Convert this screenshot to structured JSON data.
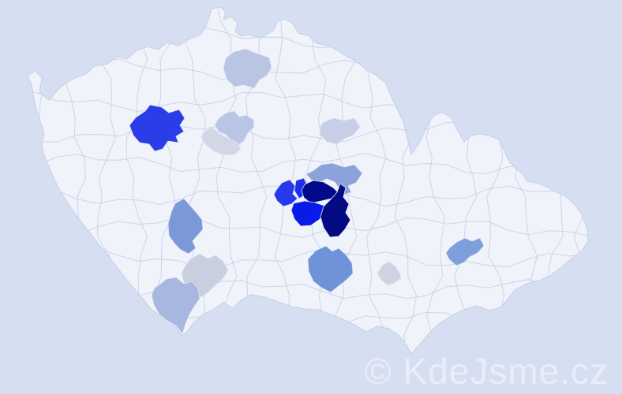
{
  "canvas": {
    "background": "#d6dff1",
    "map_fill": "#f0f3fa",
    "border_color": "#c7cee8"
  },
  "watermark": {
    "text": "© KdeJsme.cz",
    "color": "#e9edf8"
  },
  "map": {
    "type": "choropleth",
    "country_shape": "Czech Republic district map",
    "regions": [
      {
        "id": "region-west-bright-blue",
        "color": "#2b3de9"
      },
      {
        "id": "region-north-gray-blue",
        "color": "#b9c5e3"
      },
      {
        "id": "region-center-north-lavender",
        "color": "#bac5e6"
      },
      {
        "id": "region-center-west-gray",
        "color": "#d3d7e5"
      },
      {
        "id": "region-east-north-gray",
        "color": "#c7cee6"
      },
      {
        "id": "region-cluster-top-cornflower",
        "color": "#8ba2da"
      },
      {
        "id": "region-cluster-left-blue",
        "color": "#2838ec"
      },
      {
        "id": "region-cluster-mid-blue",
        "color": "#1e2ef0"
      },
      {
        "id": "region-cluster-navy-upper",
        "color": "#02098c"
      },
      {
        "id": "region-cluster-blue-lower",
        "color": "#0a1ae8"
      },
      {
        "id": "region-cluster-navy-lower",
        "color": "#040a82"
      },
      {
        "id": "region-below-cluster-cornflower",
        "color": "#6e93d8"
      },
      {
        "id": "region-southwest-cornflower",
        "color": "#7b99d8"
      },
      {
        "id": "region-south-gray",
        "color": "#cacfdf"
      },
      {
        "id": "region-south-lavender",
        "color": "#a8b7df"
      },
      {
        "id": "region-southeast-small-gray",
        "color": "#ced2e1"
      },
      {
        "id": "region-east-cornflower",
        "color": "#7da0dc"
      }
    ]
  }
}
